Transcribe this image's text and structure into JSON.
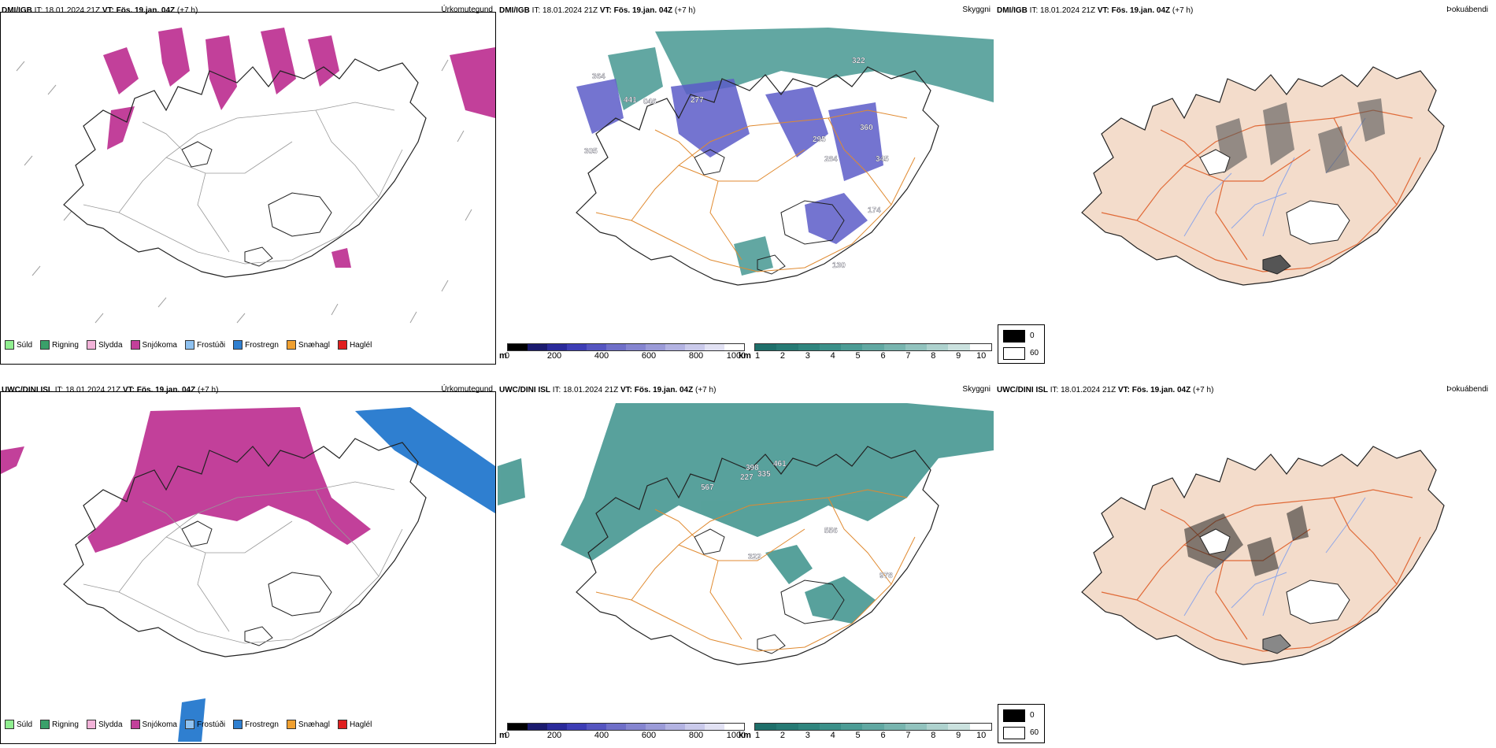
{
  "rows": [
    {
      "model": "DMI/IGB",
      "it_label": "IT:",
      "it_value": "18.01.2024 21Z",
      "vt_label": "VT:",
      "vt_value": "Fös. 19.jan. 04Z",
      "lead": "(+7 h)",
      "labels": [
        {
          "value": "364"
        },
        {
          "value": "441"
        },
        {
          "value": "046"
        },
        {
          "value": "277"
        },
        {
          "value": "305"
        },
        {
          "value": "322"
        },
        {
          "value": "360"
        },
        {
          "value": "345"
        },
        {
          "value": "284"
        },
        {
          "value": "295"
        },
        {
          "value": "174"
        },
        {
          "value": "130"
        }
      ]
    },
    {
      "model": "UWC/DINI ISL",
      "it_label": "IT:",
      "it_value": "18.01.2024 21Z",
      "vt_label": "VT:",
      "vt_value": "Fös. 19.jan. 04Z",
      "lead": "(+7 h)",
      "labels": [
        {
          "value": "567"
        },
        {
          "value": "398"
        },
        {
          "value": "335"
        },
        {
          "value": "461"
        },
        {
          "value": "227"
        },
        {
          "value": "322"
        },
        {
          "value": "556"
        },
        {
          "value": "978"
        }
      ]
    }
  ],
  "panel_names": {
    "precip": "Úrkomutegund",
    "ceiling": "Skyggni",
    "fog": "Þokuábendi"
  },
  "precip_legend": [
    {
      "label": "Súld",
      "color": "#90ee90"
    },
    {
      "label": "Rigning",
      "color": "#3aa06a"
    },
    {
      "label": "Slydda",
      "color": "#f2b3d9"
    },
    {
      "label": "Snjókoma",
      "color": "#c2409a"
    },
    {
      "label": "Frostúði",
      "color": "#8ec1f0"
    },
    {
      "label": "Frostregn",
      "color": "#2f7fd0"
    },
    {
      "label": "Snæhagl",
      "color": "#f0a030"
    },
    {
      "label": "Haglél",
      "color": "#e02020"
    }
  ],
  "ceiling_scale": {
    "unit": "m",
    "ticks": [
      "0",
      "200",
      "400",
      "600",
      "800",
      "1000"
    ],
    "colors": [
      "#000000",
      "#1a1a6e",
      "#2a2a9a",
      "#3d3db5",
      "#5555c0",
      "#6f6fc8",
      "#8585d0",
      "#9b9bd8",
      "#b3b3e2",
      "#cacaeb",
      "#e2e2f4",
      "#ffffff"
    ]
  },
  "visibility_scale": {
    "unit": "km",
    "ticks": [
      "1",
      "2",
      "3",
      "4",
      "5",
      "6",
      "7",
      "8",
      "9",
      "10"
    ],
    "colors": [
      "#1e6f6a",
      "#267a74",
      "#2f857e",
      "#3b9089",
      "#4c9c95",
      "#61a8a2",
      "#78b5af",
      "#92c3be",
      "#aed2ce",
      "#cbe2df",
      "#ffffff"
    ]
  },
  "fog_legend": [
    {
      "label": "0",
      "color": "#000000"
    },
    {
      "label": "60",
      "color": "#ffffff"
    }
  ],
  "colors": {
    "snow": "#c2409a",
    "freezing_rain": "#2f7fd0",
    "ceiling": "#5c5cc8",
    "visibility": "#2e8a83",
    "land": "#f3dccb",
    "roads": "#e06a38",
    "rivers": "#8fa6e8"
  }
}
